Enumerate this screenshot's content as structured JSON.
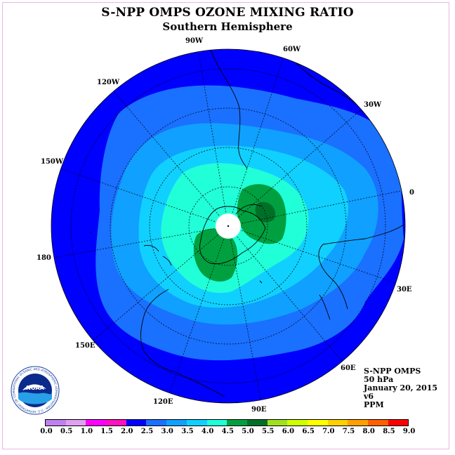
{
  "title": "S-NPP OMPS OZONE MIXING RATIO",
  "subtitle": "Southern Hemisphere",
  "longitude_labels": [
    "90W",
    "60W",
    "30W",
    "0",
    "30E",
    "60E",
    "90E",
    "120E",
    "150E",
    "180",
    "150W",
    "120W"
  ],
  "info": {
    "instrument": "S-NPP OMPS",
    "level": "50 hPa",
    "date": "January 20, 2015",
    "version": "v6",
    "units": "PPM"
  },
  "colorbar": {
    "ticks": [
      "0.0",
      "0.5",
      "1.0",
      "1.5",
      "2.0",
      "2.5",
      "3.0",
      "3.5",
      "4.0",
      "4.5",
      "5.0",
      "5.5",
      "6.0",
      "6.5",
      "7.0",
      "7.5",
      "8.0",
      "8.5",
      "9.0"
    ],
    "colors": [
      "#c080f0",
      "#e0a0f0",
      "#ff00ff",
      "#ff10c0",
      "#0000ff",
      "#1a70ff",
      "#10a0ff",
      "#10d0ff",
      "#20ffd8",
      "#00a040",
      "#007028",
      "#a0e020",
      "#d0ff00",
      "#ffff00",
      "#ffd000",
      "#ffa000",
      "#ff6000",
      "#ff0000",
      "#b00000",
      "#805030"
    ]
  },
  "logo": {
    "text": "NOAA",
    "ring_text": "NATIONAL OCEANIC AND ATMOSPHERIC ADMINISTRATION · U.S. DEPARTMENT OF COMMERCE"
  }
}
